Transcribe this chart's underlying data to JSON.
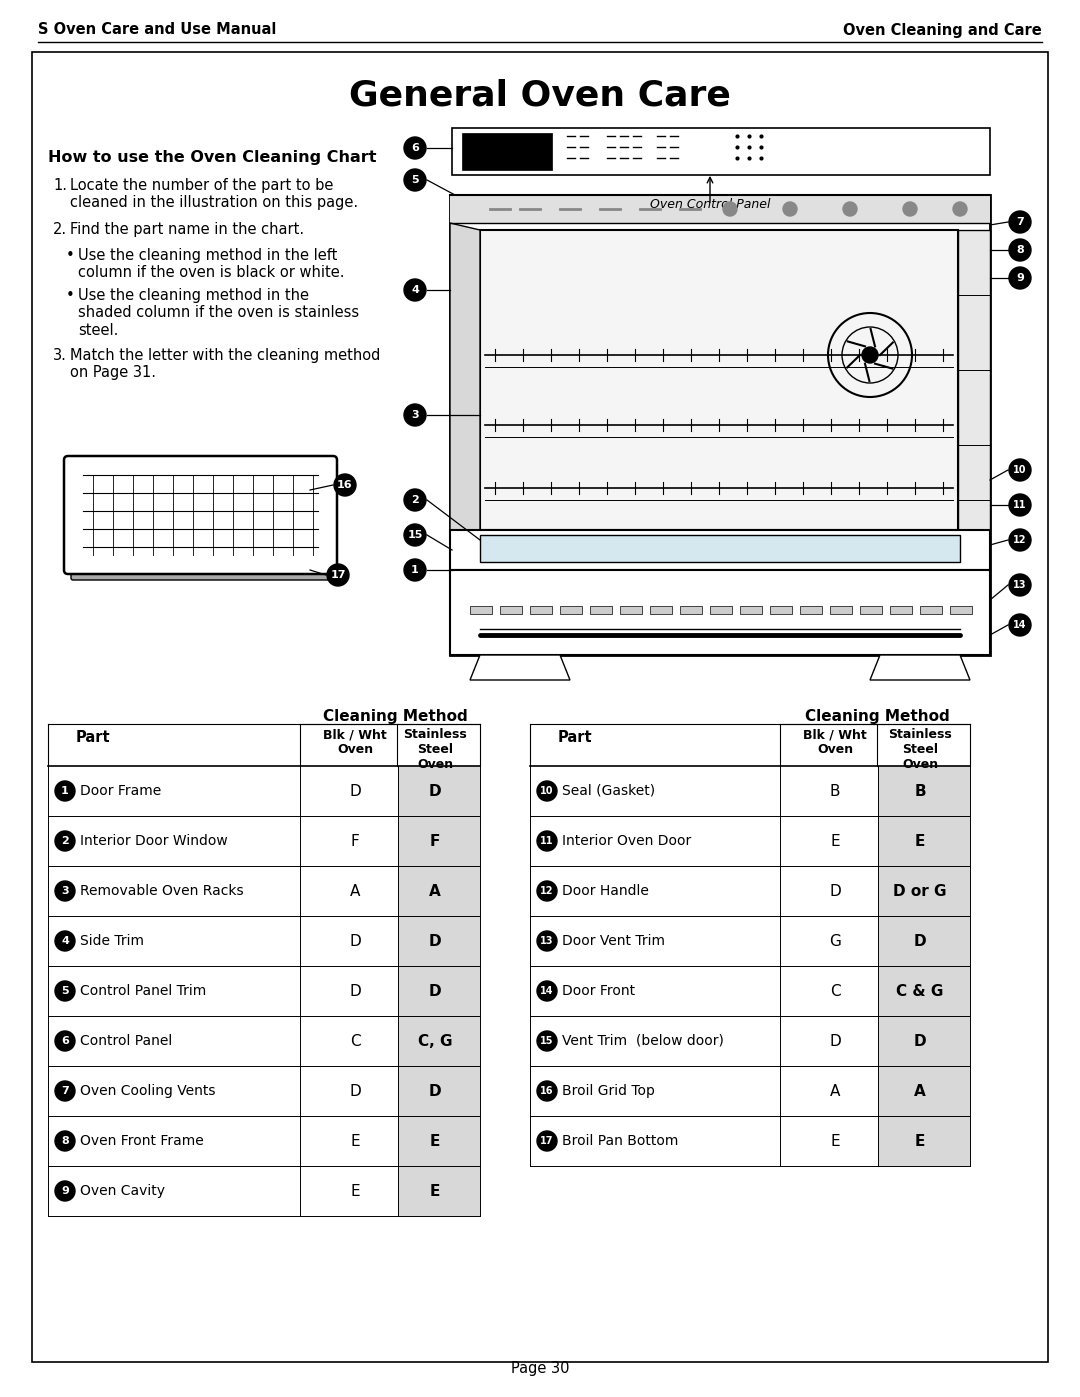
{
  "title": "General Oven Care",
  "header_left": "S Oven Care and Use Manual",
  "header_right": "Oven Cleaning and Care",
  "footer": "Page 30",
  "how_to_title": "How to use the Oven Cleaning Chart",
  "instr1_num": "1.",
  "instr1_text": "Locate the number of the part to be\ncleaned in the illustration on this page.",
  "instr2_num": "2.",
  "instr2_text": "Find the part name in the chart.",
  "instr3_num": "•",
  "instr3_text": "Use the cleaning method in the left\ncolumn if the oven is black or white.",
  "instr4_num": "•",
  "instr4_text": "Use the cleaning method in the\nshaded column if the oven is stainless\nsteel.",
  "instr5_num": "3.",
  "instr5_text": "Match the letter with the cleaning method\non Page 31.",
  "oven_control_panel_label": "Oven Control Panel",
  "table_left_rows": [
    {
      "num": "1",
      "part": "Door Frame",
      "blk": "D",
      "ss": "D"
    },
    {
      "num": "2",
      "part": "Interior Door Window",
      "blk": "F",
      "ss": "F"
    },
    {
      "num": "3",
      "part": "Removable Oven Racks",
      "blk": "A",
      "ss": "A"
    },
    {
      "num": "4",
      "part": "Side Trim",
      "blk": "D",
      "ss": "D"
    },
    {
      "num": "5",
      "part": "Control Panel Trim",
      "blk": "D",
      "ss": "D"
    },
    {
      "num": "6",
      "part": "Control Panel",
      "blk": "C",
      "ss": "C, G"
    },
    {
      "num": "7",
      "part": "Oven Cooling Vents",
      "blk": "D",
      "ss": "D"
    },
    {
      "num": "8",
      "part": "Oven Front Frame",
      "blk": "E",
      "ss": "E"
    },
    {
      "num": "9",
      "part": "Oven Cavity",
      "blk": "E",
      "ss": "E"
    }
  ],
  "table_right_rows": [
    {
      "num": "10",
      "part": "Seal (Gasket)",
      "blk": "B",
      "ss": "B"
    },
    {
      "num": "11",
      "part": "Interior Oven Door",
      "blk": "E",
      "ss": "E"
    },
    {
      "num": "12",
      "part": "Door Handle",
      "blk": "D",
      "ss": "D or G"
    },
    {
      "num": "13",
      "part": "Door Vent Trim",
      "blk": "G",
      "ss": "D"
    },
    {
      "num": "14",
      "part": "Door Front",
      "blk": "C",
      "ss": "C & G"
    },
    {
      "num": "15",
      "part": "Vent Trim  (below door)",
      "blk": "D",
      "ss": "D"
    },
    {
      "num": "16",
      "part": "Broil Grid Top",
      "blk": "A",
      "ss": "A"
    },
    {
      "num": "17",
      "part": "Broil Pan Bottom",
      "blk": "E",
      "ss": "E"
    }
  ],
  "bg": "#ffffff"
}
